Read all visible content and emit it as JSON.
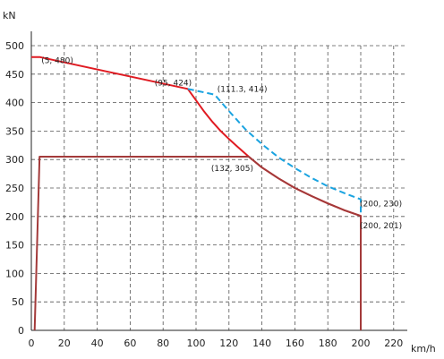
{
  "chart_data": {
    "type": "line",
    "title": "",
    "xlabel": "km/h",
    "ylabel": "kN",
    "xlim": [
      0,
      225
    ],
    "ylim": [
      0,
      500
    ],
    "x_ticks": [
      0,
      20,
      40,
      60,
      80,
      100,
      120,
      140,
      160,
      180,
      200,
      220
    ],
    "y_ticks": [
      0,
      50,
      100,
      150,
      200,
      250,
      300,
      350,
      400,
      450,
      500
    ],
    "grid": true,
    "series": [
      {
        "color": "#e01b22",
        "style": "solid",
        "x": [
          0,
          5,
          95,
          100,
          105,
          110,
          115,
          120,
          125,
          132,
          140,
          150,
          160,
          170,
          180,
          190,
          200,
          200
        ],
        "y": [
          480,
          480,
          424,
          404,
          384,
          366,
          350,
          336,
          323,
          305,
          286,
          267,
          250,
          236,
          223,
          211,
          201,
          0
        ]
      },
      {
        "color": "#1aa3e0",
        "style": "dashed",
        "x": [
          95,
          111.3,
          120,
          130,
          140,
          150,
          160,
          170,
          180,
          190,
          200,
          200
        ],
        "y": [
          424,
          414,
          385,
          353,
          327,
          304,
          285,
          268,
          253,
          241,
          230,
          201
        ]
      },
      {
        "color": "#a33a3a",
        "style": "solid",
        "x": [
          2,
          5,
          132,
          140,
          150,
          160,
          170,
          180,
          190,
          200,
          200
        ],
        "y": [
          0,
          305,
          305,
          286,
          267,
          250,
          236,
          223,
          211,
          201,
          0
        ]
      }
    ],
    "annotations": [
      {
        "text": "(5, 480)",
        "x": 5,
        "y": 480
      },
      {
        "text": "(95, 424)",
        "x": 95,
        "y": 424
      },
      {
        "text": "(111.3, 414)",
        "x": 111.3,
        "y": 414
      },
      {
        "text": "(132, 305)",
        "x": 132,
        "y": 305
      },
      {
        "text": "(200, 230)",
        "x": 200,
        "y": 230
      },
      {
        "text": "(200, 201)",
        "x": 200,
        "y": 201
      }
    ]
  }
}
